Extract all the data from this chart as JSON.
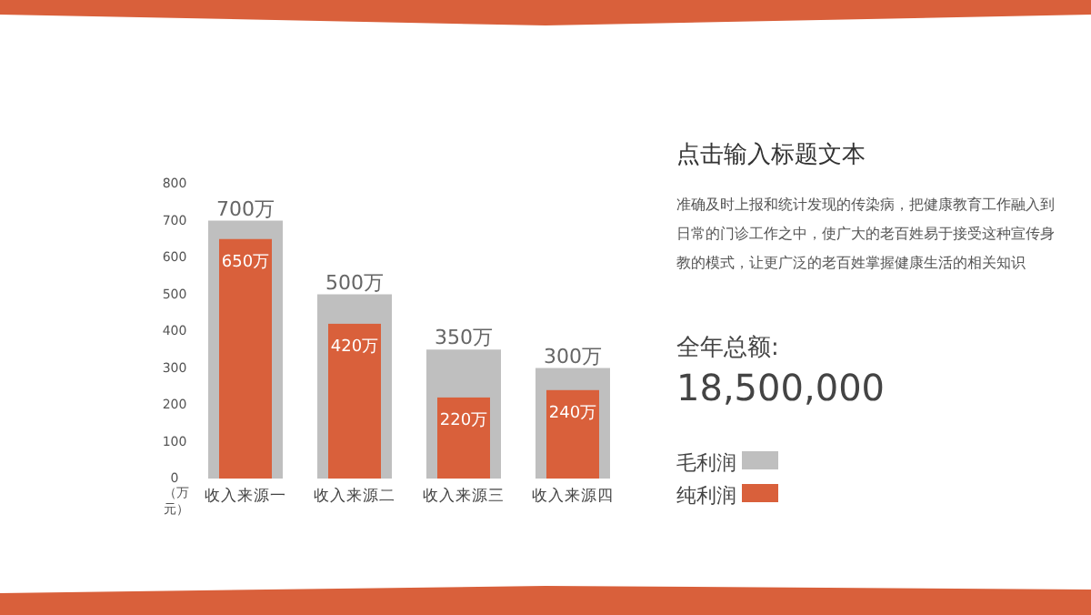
{
  "chart_data": {
    "type": "bar",
    "title": "点击输入标题文本",
    "subtitle": "准确及时上报和统计发现的传染病，把健康教育工作融入到日常的门诊工作之中，使广大的老百姓易于接受这种宣传身教的模式，让更广泛的老百姓掌握健康生活的相关知识",
    "annotations": [
      "全年总额:",
      "18,500,000"
    ],
    "ylabel": "（万元）",
    "categories": [
      "收入来源一",
      "收入来源二",
      "收入来源三",
      "收入来源四"
    ],
    "series": [
      {
        "name": "毛利润",
        "color": "#bfbfbf",
        "values": [
          700,
          500,
          350,
          300
        ],
        "value_labels": [
          "700万",
          "500万",
          "350万",
          "300万"
        ]
      },
      {
        "name": "纯利润",
        "color": "#d9603b",
        "values": [
          650,
          420,
          220,
          240
        ],
        "value_labels": [
          "650万",
          "420万",
          "220万",
          "240万"
        ]
      }
    ],
    "ylim": [
      0,
      800
    ],
    "yticks": [
      0,
      100,
      200,
      300,
      400,
      500,
      600,
      700,
      800
    ],
    "grid": false,
    "legend": "right"
  }
}
